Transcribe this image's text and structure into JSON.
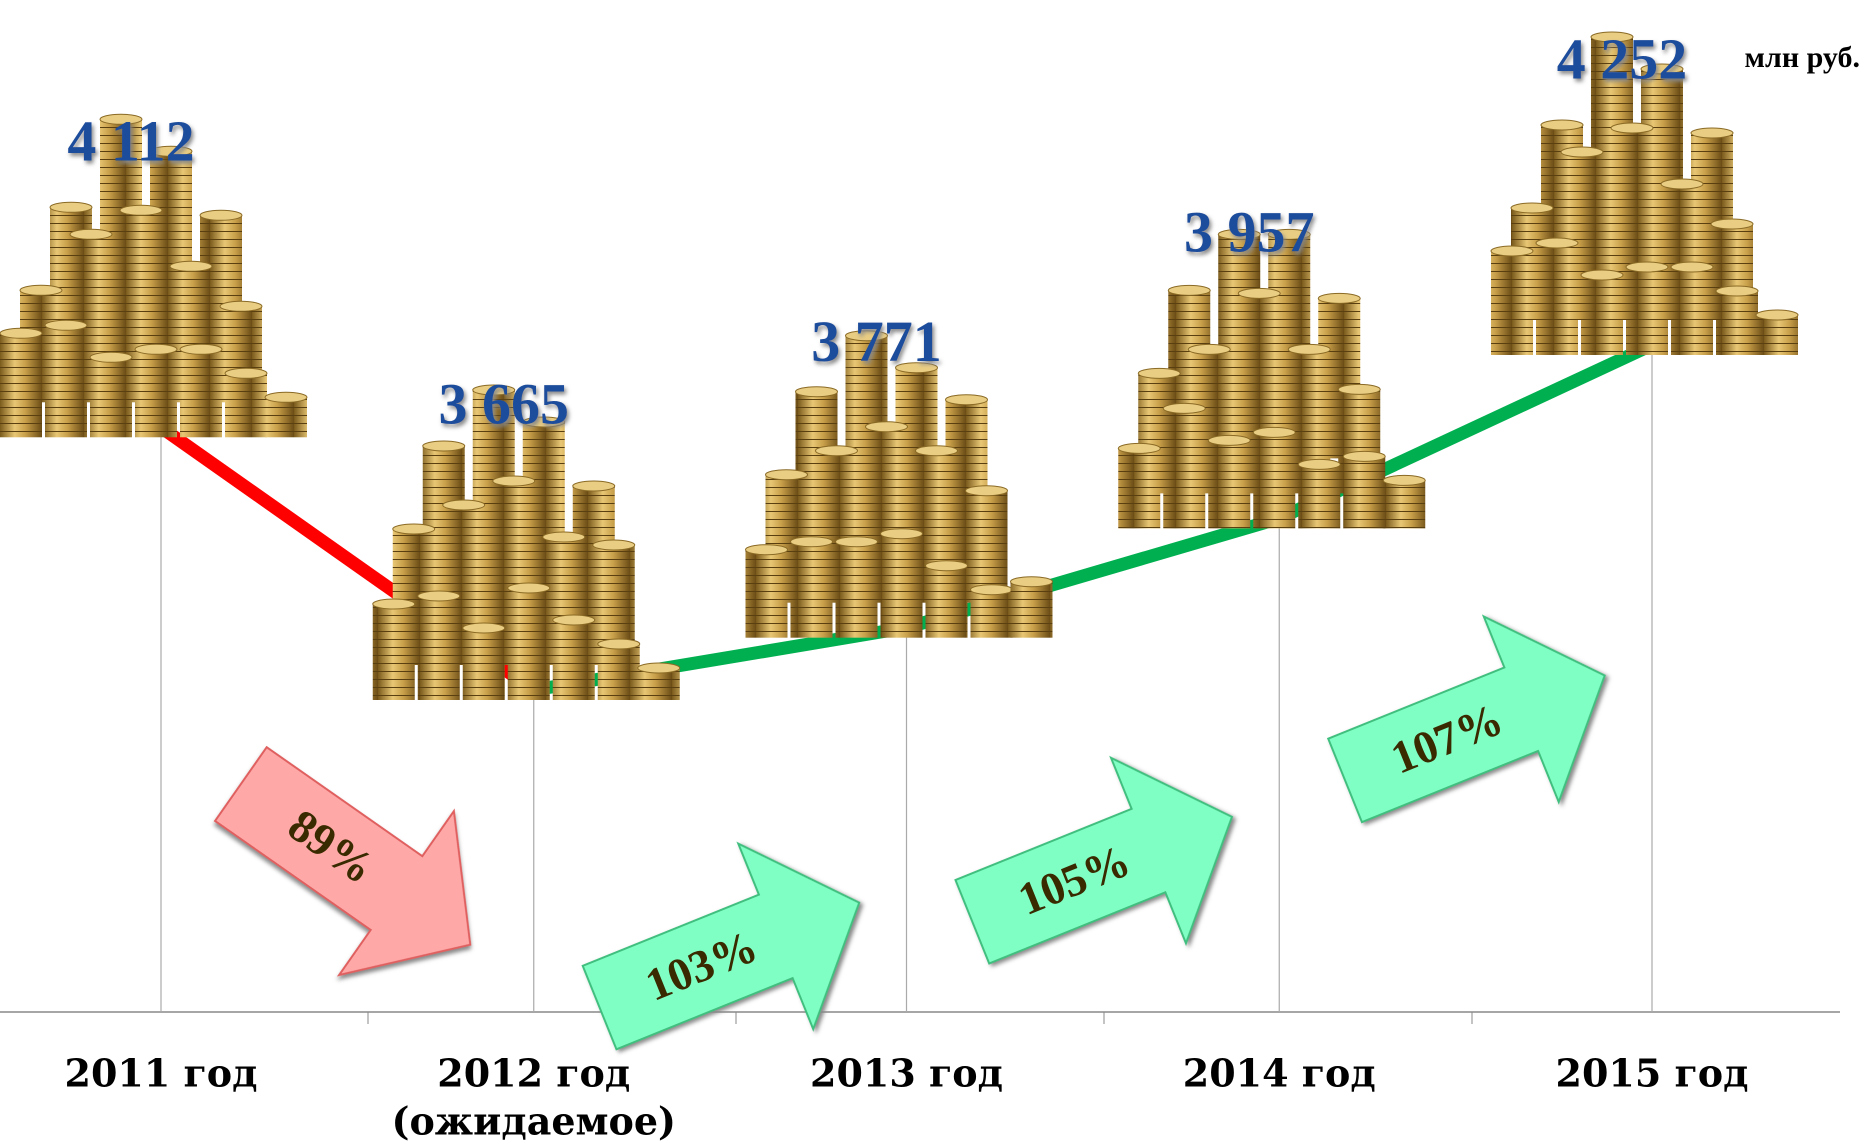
{
  "chart_data": {
    "type": "line",
    "unit_label": "млн руб.",
    "categories": [
      "2011 год",
      "2012 год",
      "2013 год",
      "2014 год",
      "2015 год"
    ],
    "category_notes": [
      null,
      "(ожидаемое)",
      null,
      null,
      null
    ],
    "values": [
      4112,
      3665,
      3771,
      3957,
      4252
    ],
    "value_labels": [
      "4 112",
      "3 665",
      "3 771",
      "3 957",
      "4 252"
    ],
    "increase_color": "#00b050",
    "decrease_color": "#ff0000",
    "label_color": "#1f4e9c",
    "growth": {
      "values": [
        89,
        103,
        105,
        107
      ],
      "value_labels": [
        "89%",
        "103%",
        "105%",
        "107%"
      ],
      "increase_color": "#7fffc4",
      "decrease_color": "#ffa8a8"
    }
  }
}
